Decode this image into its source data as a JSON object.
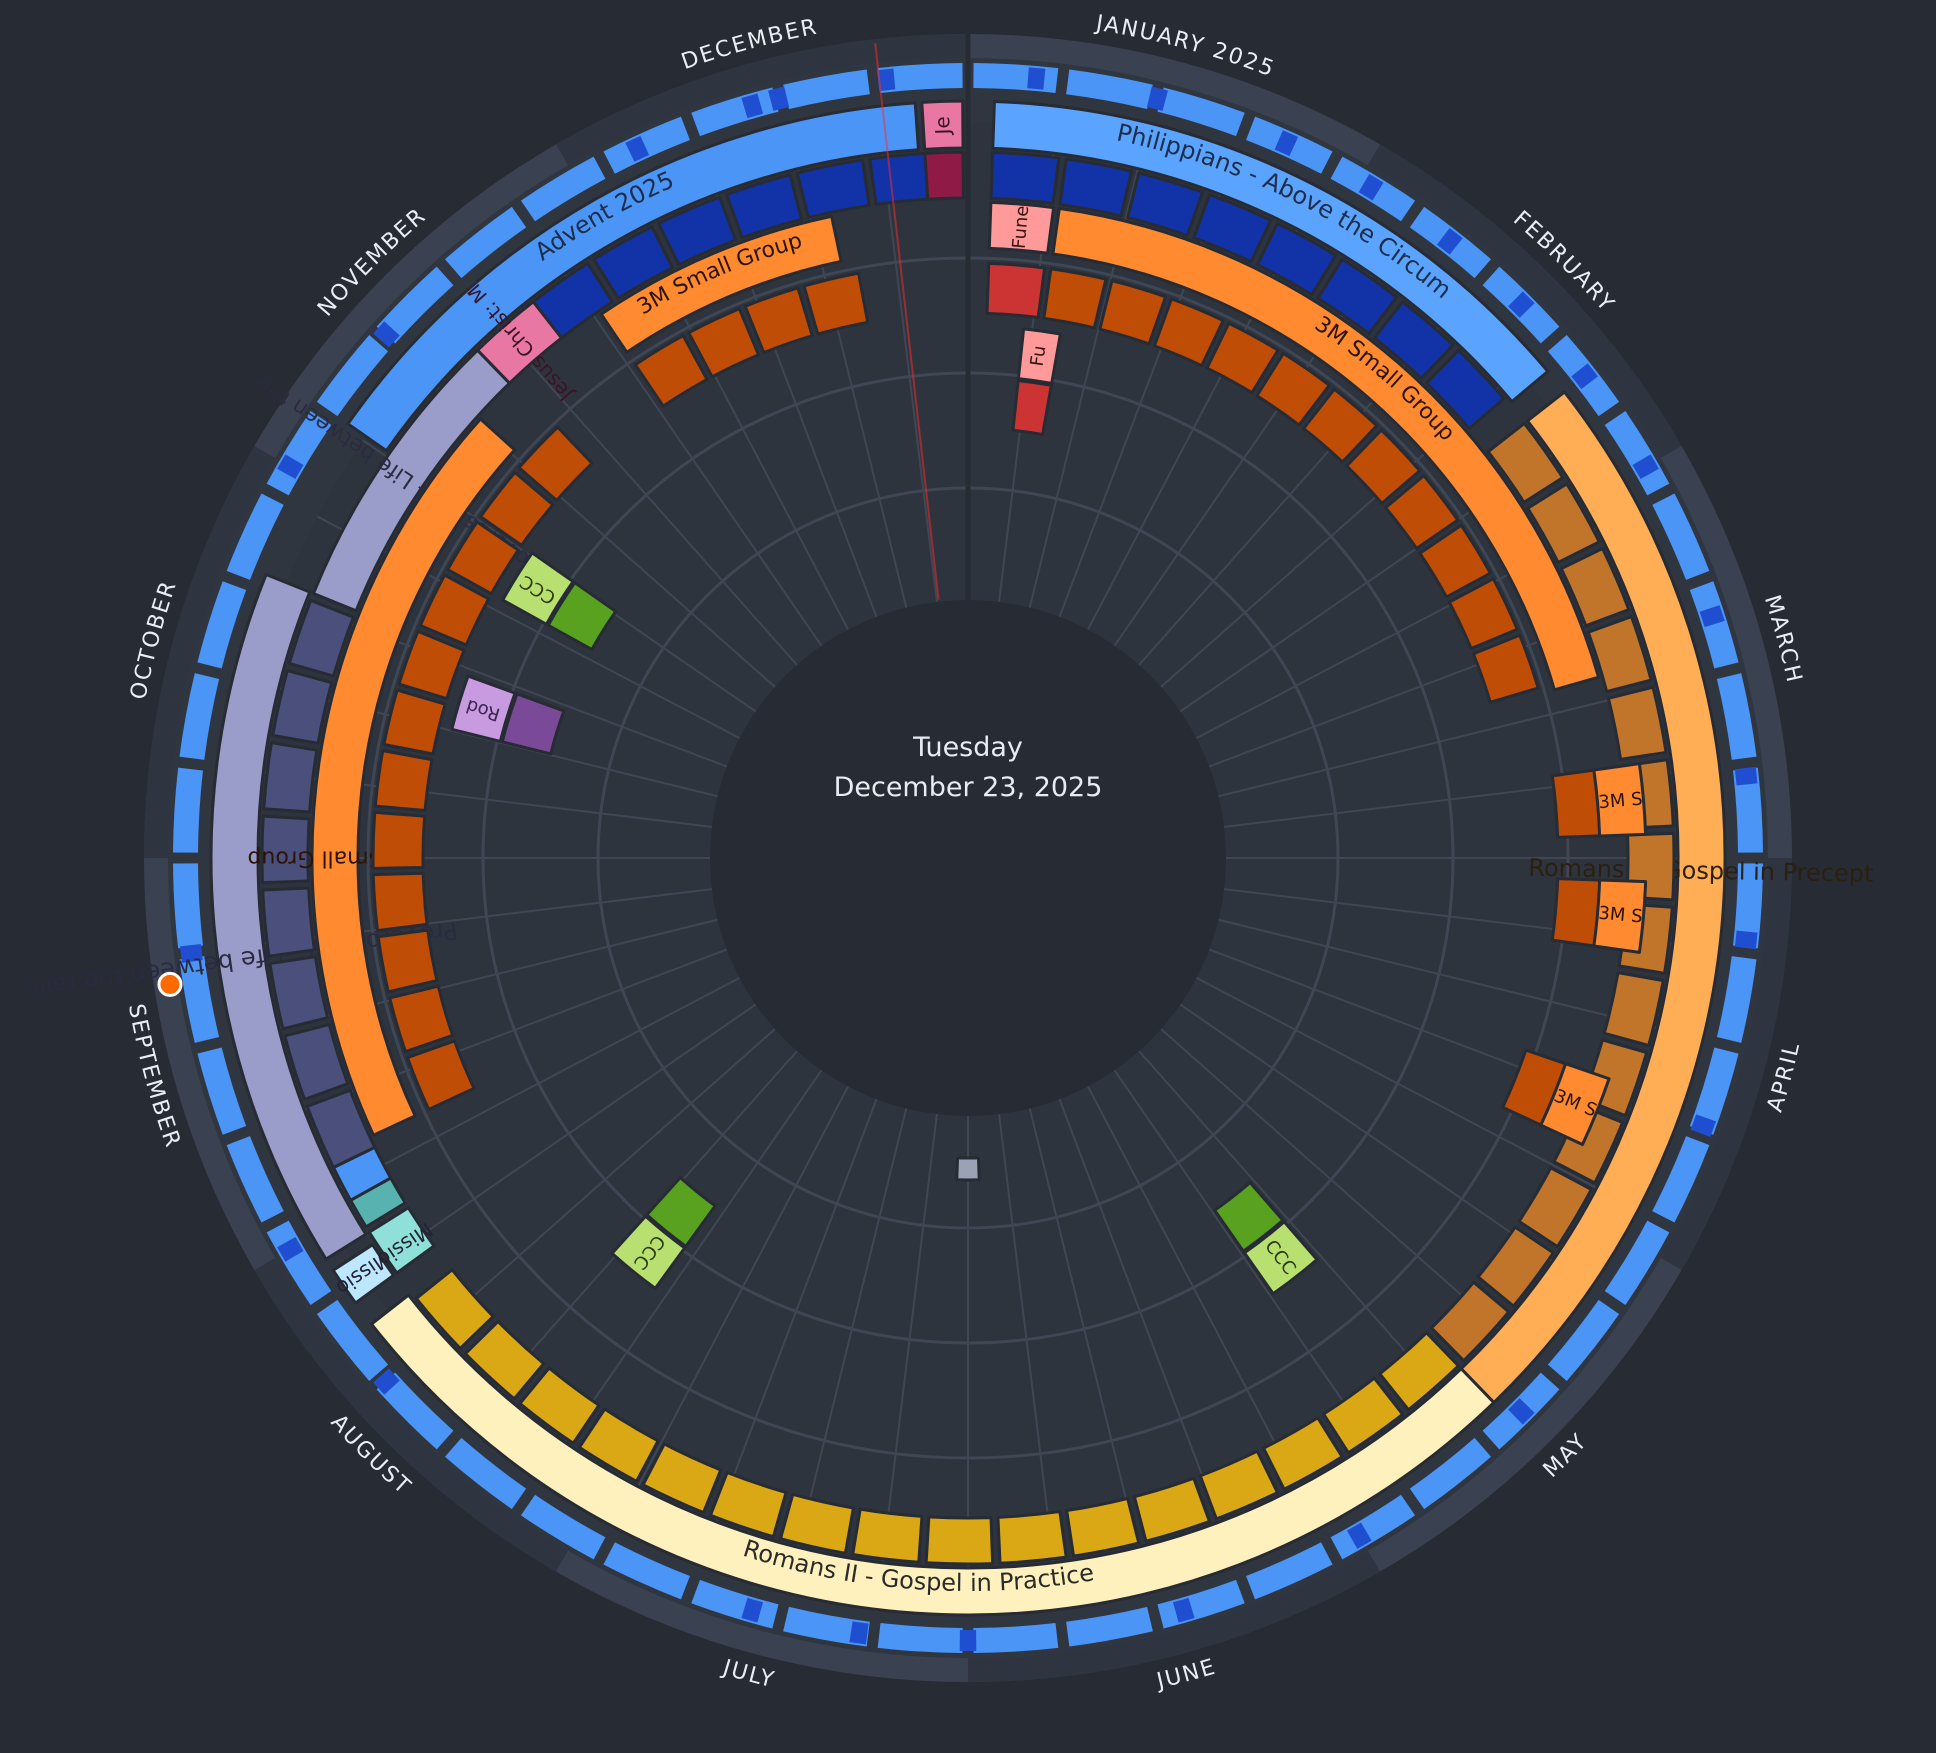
{
  "selected_date": {
    "weekday": "Tuesday",
    "date": "December 23, 2025"
  },
  "colors": {
    "background": "#272b33",
    "ring_bg": "#303640",
    "ring_frame": "#3a4252",
    "grid": "#3f4654",
    "week_ring": "#4b95f7",
    "week_marker": "#1f4fd0",
    "today_line": "#ff2a2a",
    "event_dot": "#ff6a00"
  },
  "months": [
    "JANUARY 2025",
    "FEBRUARY",
    "MARCH",
    "APRIL",
    "MAY",
    "JUNE",
    "JULY",
    "AUGUST",
    "SEPTEMBER",
    "OCTOBER",
    "NOVEMBER",
    "DECEMBER"
  ],
  "series": [
    {
      "label": "Philippians - Above the Circum",
      "color": "#5aa4ff",
      "text_color": "#1c2e4a",
      "lane": "outer"
    },
    {
      "label": "Romans I - Gospel in Precept",
      "color": "#ffae55",
      "text_color": "#2b1f10",
      "lane": "outer"
    },
    {
      "label": "Romans II - Gospel in Practice",
      "color": "#fff1bd",
      "text_color": "#2b2b2b",
      "lane": "outer"
    },
    {
      "label": "Missio",
      "color": "#bde6ff",
      "text_color": "#223",
      "lane": "outer"
    },
    {
      "label": "Missio",
      "color": "#8fe0d8",
      "text_color": "#223",
      "lane": "lane2"
    },
    {
      "label": "Proverbs 1-9 - Life between the rails",
      "color": "#9a9cc9",
      "text_color": "#2a2b40",
      "lane": "outer"
    },
    {
      "label": "Proverbs 1-9 - Life between the",
      "color": "#9a9cc9",
      "text_color": "#2a2b40",
      "lane": "lane2"
    },
    {
      "label": "Jesus Christ: M",
      "color": "#e877a3",
      "text_color": "#3a1424",
      "lane": "lane2"
    },
    {
      "label": "Advent 2025",
      "color": "#4b95f7",
      "text_color": "#1c2e4a",
      "lane": "outer"
    },
    {
      "label": "Je",
      "color": "#e877a3",
      "text_color": "#3a1424",
      "lane": "outer"
    },
    {
      "label": "3M Small Group",
      "color": "#ff8a30",
      "text_color": "#2b1405",
      "lane": "lane3"
    },
    {
      "label": "3M Small Group",
      "color": "#ff8a30",
      "text_color": "#2b1405",
      "lane": "lane3"
    },
    {
      "label": "3M Small Group",
      "color": "#ff8a30",
      "text_color": "#2b1405",
      "lane": "lane3"
    },
    {
      "label": "Fune",
      "color": "#ff9a9a",
      "text_color": "#3a1414",
      "lane": "lane3"
    },
    {
      "label": "Fu",
      "color": "#ff9a9a",
      "text_color": "#3a1414",
      "lane": "lane5"
    },
    {
      "label": "3M S",
      "color": "#ff8a30",
      "text_color": "#2b1405",
      "lane": "lane4"
    },
    {
      "label": "3M S",
      "color": "#ff8a30",
      "text_color": "#2b1405",
      "lane": "lane4"
    },
    {
      "label": "3M S",
      "color": "#ff8a30",
      "text_color": "#2b1405",
      "lane": "lane4"
    },
    {
      "label": "CCC",
      "color": "#b8e070",
      "text_color": "#2c3a10",
      "lane": "lane5"
    },
    {
      "label": "CCC",
      "color": "#b8e070",
      "text_color": "#2c3a10",
      "lane": "lane5"
    },
    {
      "label": "CCC",
      "color": "#b8e070",
      "text_color": "#2c3a10",
      "lane": "lane5"
    },
    {
      "label": "Rod",
      "color": "#c89be0",
      "text_color": "#3a2450",
      "lane": "lane5"
    }
  ]
}
